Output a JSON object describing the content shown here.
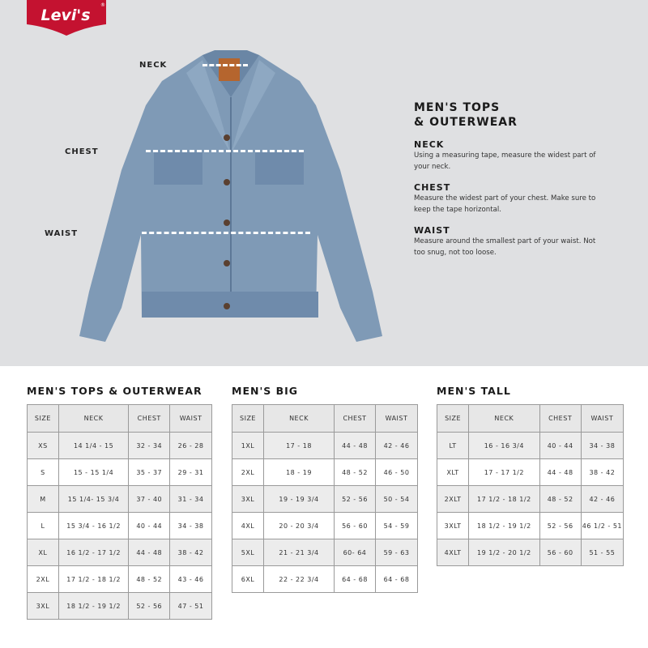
{
  "brand": {
    "logo_text": "Levi's",
    "color": "#c41230"
  },
  "diagram": {
    "labels": {
      "neck": "NECK",
      "chest": "CHEST",
      "waist": "WAIST"
    }
  },
  "info": {
    "title": "MEN'S TOPS\n& OUTERWEAR",
    "items": [
      {
        "heading": "NECK",
        "text": "Using a measuring tape, measure the widest part of your neck."
      },
      {
        "heading": "CHEST",
        "text": "Measure the widest part of your chest. Make sure to keep the tape horizontal."
      },
      {
        "heading": "WAIST",
        "text": "Measure around the smallest part of your waist. Not too snug, not too loose."
      }
    ]
  },
  "tables": [
    {
      "title": "MEN'S TOPS & OUTERWEAR",
      "headers": [
        "SIZE",
        "NECK",
        "CHEST",
        "WAIST"
      ],
      "rows": [
        [
          "XS",
          "14 1/4 - 15",
          "32 - 34",
          "26 - 28"
        ],
        [
          "S",
          "15 - 15 1/4",
          "35 - 37",
          "29 - 31"
        ],
        [
          "M",
          "15 1/4- 15 3/4",
          "37 - 40",
          "31 - 34"
        ],
        [
          "L",
          "15 3/4 - 16 1/2",
          "40 - 44",
          "34 - 38"
        ],
        [
          "XL",
          "16 1/2 - 17 1/2",
          "44 - 48",
          "38 - 42"
        ],
        [
          "2XL",
          "17 1/2 - 18 1/2",
          "48 - 52",
          "43 - 46"
        ],
        [
          "3XL",
          "18 1/2 - 19 1/2",
          "52 - 56",
          "47 - 51"
        ]
      ]
    },
    {
      "title": "MEN'S BIG",
      "headers": [
        "SIZE",
        "NECK",
        "CHEST",
        "WAIST"
      ],
      "rows": [
        [
          "1XL",
          "17 - 18",
          "44 - 48",
          "42 - 46"
        ],
        [
          "2XL",
          "18 - 19",
          "48 - 52",
          "46 - 50"
        ],
        [
          "3XL",
          "19 - 19 3/4",
          "52 - 56",
          "50 - 54"
        ],
        [
          "4XL",
          "20 - 20 3/4",
          "56 - 60",
          "54 - 59"
        ],
        [
          "5XL",
          "21 - 21 3/4",
          "60- 64",
          "59 - 63"
        ],
        [
          "6XL",
          "22 - 22 3/4",
          "64 - 68",
          "64 - 68"
        ]
      ]
    },
    {
      "title": "MEN'S TALL",
      "headers": [
        "SIZE",
        "NECK",
        "CHEST",
        "WAIST"
      ],
      "rows": [
        [
          "LT",
          "16 - 16 3/4",
          "40 - 44",
          "34 - 38"
        ],
        [
          "XLT",
          "17 - 17 1/2",
          "44 - 48",
          "38 - 42"
        ],
        [
          "2XLT",
          "17 1/2 - 18 1/2",
          "48 - 52",
          "42 - 46"
        ],
        [
          "3XLT",
          "18 1/2 - 19 1/2",
          "52 - 56",
          "46 1/2 - 51"
        ],
        [
          "4XLT",
          "19 1/2 - 20 1/2",
          "56 - 60",
          "51 - 55"
        ]
      ]
    }
  ]
}
